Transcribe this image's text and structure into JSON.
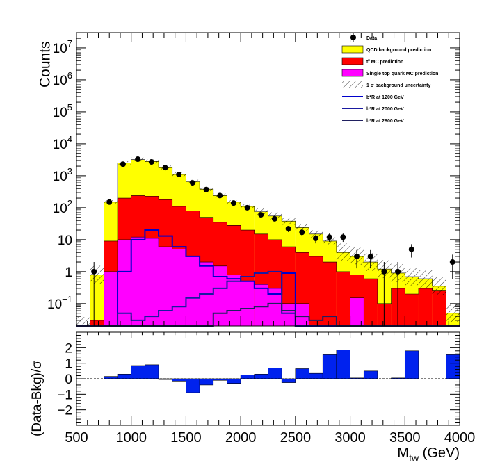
{
  "chart_data": {
    "type": "bar",
    "xlabel": "M",
    "xlabel_sub": "tw",
    "xlabel_unit": " (GeV)",
    "ylabel": "Counts",
    "ratio_ylabel": "(Data-Bkg)/σ",
    "xlim": [
      500,
      4000
    ],
    "ylim_log": [
      0.02,
      30000000
    ],
    "ratio_ylim": [
      -3,
      3
    ],
    "x_ticks": [
      500,
      1000,
      1500,
      2000,
      2500,
      3000,
      3500,
      4000
    ],
    "y_ticks": [
      {
        "v": 0.1,
        "b": "10",
        "e": "−1"
      },
      {
        "v": 1,
        "b": "1",
        "e": ""
      },
      {
        "v": 10,
        "b": "10",
        "e": ""
      },
      {
        "v": 100,
        "b": "10",
        "e": "2"
      },
      {
        "v": 1000,
        "b": "10",
        "e": "3"
      },
      {
        "v": 10000,
        "b": "10",
        "e": "4"
      },
      {
        "v": 100000,
        "b": "10",
        "e": "5"
      },
      {
        "v": 1000000,
        "b": "10",
        "e": "6"
      },
      {
        "v": 10000000,
        "b": "10",
        "e": "7"
      }
    ],
    "ratio_ticks": [
      "−2",
      "−1",
      "0",
      "1",
      "2"
    ],
    "ratio_tick_values": [
      -2,
      -1,
      0,
      1,
      2
    ],
    "bin_edges": [
      500,
      625,
      750,
      875,
      1000,
      1125,
      1250,
      1375,
      1500,
      1625,
      1750,
      1875,
      2000,
      2125,
      2250,
      2375,
      2500,
      2625,
      2750,
      2875,
      3000,
      3125,
      3250,
      3375,
      3500,
      3625,
      3750,
      3875,
      4000
    ],
    "series": [
      {
        "name": "QCD background prediction",
        "color": "#ffff00",
        "kind": "stack_total",
        "values": [
          0.02,
          0.8,
          150,
          2500,
          3200,
          2800,
          1800,
          1100,
          650,
          380,
          240,
          150,
          110,
          75,
          55,
          38,
          24,
          15,
          9,
          4,
          3,
          2,
          1.2,
          0.9,
          0.7,
          0.6,
          0.35,
          0.05
        ]
      },
      {
        "name": "tt̄ MC prediction",
        "color": "#ff0000",
        "kind": "stack_mid",
        "values": [
          0.02,
          0.03,
          9,
          200,
          240,
          230,
          180,
          110,
          80,
          50,
          35,
          28,
          20,
          15,
          10,
          6,
          4,
          3,
          2,
          1,
          0.8,
          0.6,
          0.1,
          0.3,
          0.2,
          0.3,
          0.25,
          0.02
        ]
      },
      {
        "name": "Single top quark MC prediction",
        "color": "#ff00ff",
        "kind": "stack_base",
        "values": [
          0.02,
          0.02,
          1,
          10,
          12,
          11,
          6,
          5,
          3,
          2,
          1.5,
          0.8,
          0.5,
          0.4,
          0.3,
          0.1,
          0.1,
          0.02,
          0.02,
          0.02,
          0.15,
          0.02,
          0.02,
          0.02,
          0.02,
          0.02,
          0.02,
          0.02
        ]
      }
    ],
    "signals": [
      {
        "name": "b*R at 1200 GeV",
        "color": "#0000cc",
        "values": [
          0.02,
          0.02,
          0.02,
          1,
          10,
          20,
          13,
          6,
          3,
          1.5,
          0.7,
          0.6,
          0.5,
          0.3,
          0.2,
          0.9,
          0.02,
          0.02,
          0.02,
          0.02,
          0.02,
          0.02,
          0.02,
          0.02,
          0.02,
          0.02,
          0.02,
          0.02
        ]
      },
      {
        "name": "b*R at 2000 GeV",
        "color": "#1a1aa0",
        "values": [
          0.02,
          0.02,
          0.02,
          0.05,
          0.03,
          0.04,
          0.06,
          0.08,
          0.15,
          0.2,
          0.3,
          0.5,
          0.7,
          0.9,
          1.0,
          0.05,
          0.02,
          0.02,
          0.02,
          0.02,
          0.02,
          0.02,
          0.02,
          0.02,
          0.02,
          0.02,
          0.02,
          0.02
        ]
      },
      {
        "name": "b*R at 2800 GeV",
        "color": "#202060",
        "values": [
          0.02,
          0.02,
          0.02,
          0.02,
          0.02,
          0.02,
          0.02,
          0.02,
          0.02,
          0.02,
          0.05,
          0.06,
          0.07,
          0.08,
          0.1,
          0.06,
          0.04,
          0.03,
          0.04,
          0.02,
          0.02,
          0.02,
          0.02,
          0.02,
          0.02,
          0.02,
          0.02,
          0.02
        ]
      }
    ],
    "data_points": [
      {
        "x": 660,
        "y": 1.0
      },
      {
        "x": 800,
        "y": 150
      },
      {
        "x": 925,
        "y": 2300
      },
      {
        "x": 1060,
        "y": 3300
      },
      {
        "x": 1185,
        "y": 2700
      },
      {
        "x": 1310,
        "y": 1800
      },
      {
        "x": 1435,
        "y": 1100
      },
      {
        "x": 1560,
        "y": 600
      },
      {
        "x": 1685,
        "y": 370
      },
      {
        "x": 1810,
        "y": 240
      },
      {
        "x": 1935,
        "y": 140
      },
      {
        "x": 2060,
        "y": 100
      },
      {
        "x": 2185,
        "y": 60
      },
      {
        "x": 2310,
        "y": 45
      },
      {
        "x": 2435,
        "y": 22
      },
      {
        "x": 2560,
        "y": 17
      },
      {
        "x": 2685,
        "y": 11
      },
      {
        "x": 2810,
        "y": 12
      },
      {
        "x": 2935,
        "y": 12
      },
      {
        "x": 3060,
        "y": 3
      },
      {
        "x": 3185,
        "y": 3
      },
      {
        "x": 3310,
        "y": 1
      },
      {
        "x": 3435,
        "y": 1
      },
      {
        "x": 3560,
        "y": 5
      },
      {
        "x": 3935,
        "y": 2
      }
    ],
    "ratio_values": [
      0,
      0,
      0.15,
      0.3,
      0.85,
      0.9,
      -0.05,
      -0.15,
      -0.9,
      -0.4,
      -0.1,
      -0.3,
      0.25,
      0.3,
      0.7,
      -0.25,
      0.65,
      0.35,
      1.55,
      1.85,
      0.05,
      0.5,
      0,
      0.05,
      1.8,
      0,
      0,
      1.55
    ],
    "legend": [
      {
        "label": "Data",
        "kind": "point"
      },
      {
        "label": "QCD background prediction",
        "kind": "box",
        "color": "#ffff00"
      },
      {
        "label": "tt̄ MC prediction",
        "kind": "box",
        "color": "#ff0000"
      },
      {
        "label": "Single top quark MC prediction",
        "kind": "box",
        "color": "#ff00ff"
      },
      {
        "label": "1 σ background uncertainty",
        "kind": "hatch"
      },
      {
        "label": "b*R at 1200 GeV",
        "kind": "line",
        "color": "#0000cc"
      },
      {
        "label": "b*R at 2000 GeV",
        "kind": "line",
        "color": "#1a1aa0"
      },
      {
        "label": "b*R at 2800 GeV",
        "kind": "line",
        "color": "#202060"
      }
    ]
  }
}
